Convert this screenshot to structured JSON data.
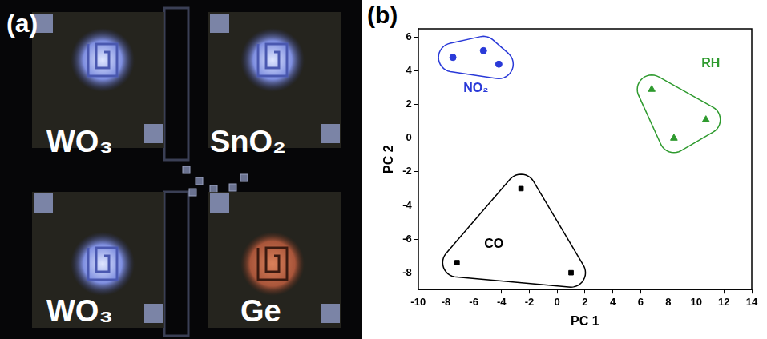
{
  "photo": {
    "panel_label": "(a)",
    "sensors": [
      "WO₃",
      "SnO₂",
      "WO₃",
      "Ge"
    ]
  },
  "chart_data": {
    "type": "scatter",
    "panel_label": "(b)",
    "x_label": "PC 1",
    "y_label": "PC 2",
    "xlim": [
      -10,
      14
    ],
    "xticks": [
      -10,
      -8,
      -6,
      -4,
      -2,
      0,
      2,
      4,
      6,
      8,
      10,
      12,
      14
    ],
    "ylim": [
      -9,
      6.5
    ],
    "yticks": [
      -8,
      -6,
      -4,
      -2,
      0,
      2,
      4,
      6
    ],
    "grid": false,
    "series": [
      {
        "name": "NO₂",
        "color": "#2a3ad8",
        "marker": "circle",
        "x": [
          -7.5,
          -5.3,
          -4.2
        ],
        "values": [
          4.8,
          5.2,
          4.4
        ]
      },
      {
        "name": "RH",
        "color": "#2e9a2e",
        "marker": "triangle",
        "x": [
          6.8,
          8.4,
          10.7
        ],
        "values": [
          2.9,
          0.0,
          1.1
        ]
      },
      {
        "name": "CO",
        "color": "#000000",
        "marker": "square",
        "x": [
          -2.6,
          -7.2,
          1.0
        ],
        "values": [
          -3.0,
          -7.4,
          -8.0
        ]
      }
    ]
  }
}
